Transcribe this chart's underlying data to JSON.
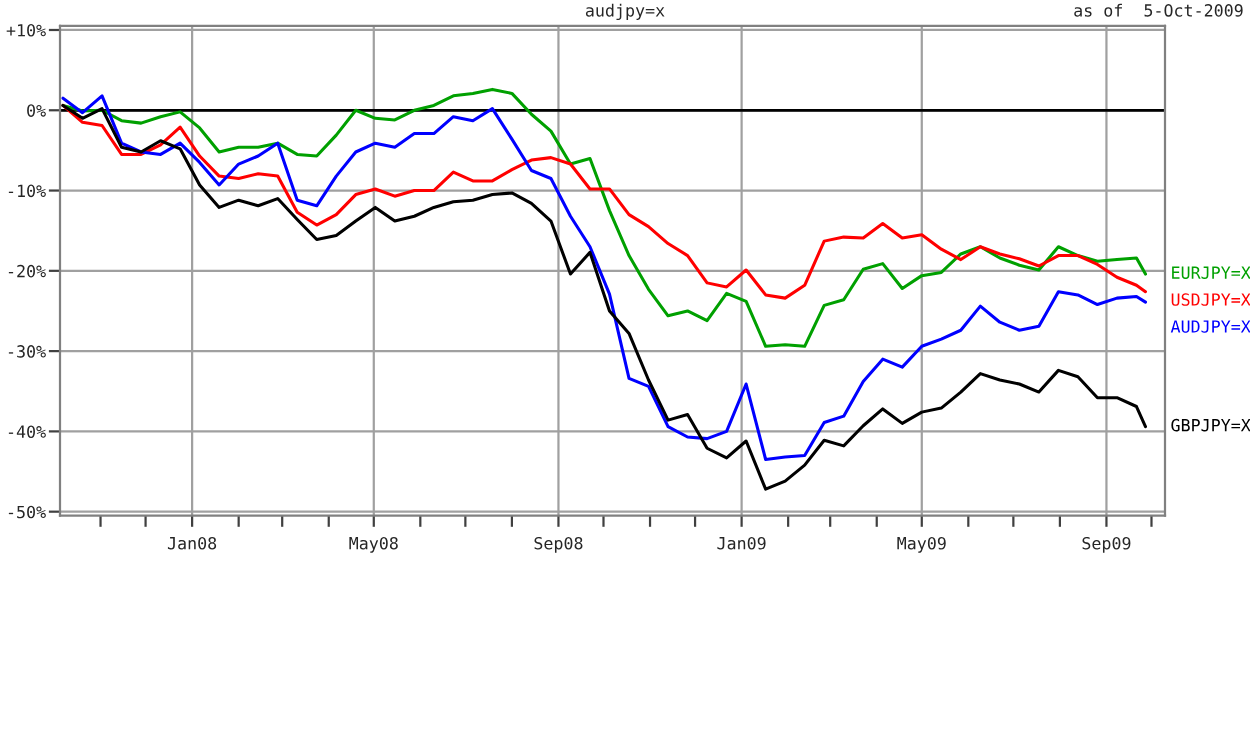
{
  "chart_data": {
    "type": "line",
    "title": "audjpy=x",
    "annotations": [
      "as of  5-Oct-2009"
    ],
    "x": [
      "2007-10-07",
      "2007-10-20",
      "2007-11-02",
      "2007-11-15",
      "2007-11-28",
      "2007-12-11",
      "2007-12-24",
      "2008-01-06",
      "2008-01-19",
      "2008-02-01",
      "2008-02-14",
      "2008-02-27",
      "2008-03-11",
      "2008-03-24",
      "2008-04-06",
      "2008-04-19",
      "2008-05-02",
      "2008-05-15",
      "2008-05-28",
      "2008-06-10",
      "2008-06-23",
      "2008-07-06",
      "2008-07-19",
      "2008-08-01",
      "2008-08-14",
      "2008-08-27",
      "2008-09-09",
      "2008-09-22",
      "2008-10-05",
      "2008-10-18",
      "2008-10-31",
      "2008-11-13",
      "2008-11-26",
      "2008-12-09",
      "2008-12-22",
      "2009-01-04",
      "2009-01-17",
      "2009-01-30",
      "2009-02-12",
      "2009-02-25",
      "2009-03-10",
      "2009-03-23",
      "2009-04-05",
      "2009-04-18",
      "2009-05-01",
      "2009-05-14",
      "2009-05-27",
      "2009-06-09",
      "2009-06-22",
      "2009-07-05",
      "2009-07-18",
      "2009-07-31",
      "2009-08-13",
      "2009-08-26",
      "2009-09-08",
      "2009-09-21",
      "2009-09-27"
    ],
    "series": [
      {
        "name": "EURJPY=X",
        "color": "#00a000",
        "values": [
          0.6,
          -0.1,
          0,
          -1.3,
          -1.6,
          -0.8,
          -0.2,
          -2.2,
          -5.2,
          -4.6,
          -4.6,
          -4.1,
          -5.5,
          -5.7,
          -3.1,
          0,
          -1.0,
          -1.2,
          0,
          0.6,
          1.8,
          2.1,
          2.6,
          2.1,
          -0.5,
          -2.6,
          -6.7,
          -6.0,
          -12.5,
          -18.1,
          -22.3,
          -25.6,
          -25.0,
          -26.2,
          -22.8,
          -23.8,
          -29.4,
          -29.2,
          -29.4,
          -24.3,
          -23.6,
          -19.8,
          -19.1,
          -22.2,
          -20.6,
          -20.2,
          -17.9,
          -17.0,
          -18.4,
          -19.3,
          -19.9,
          -17.0,
          -18.1,
          -18.8,
          -18.6,
          -18.4,
          -20.4
        ]
      },
      {
        "name": "USDJPY=X",
        "color": "#ff0000",
        "values": [
          0.6,
          -1.5,
          -1.9,
          -5.5,
          -5.5,
          -4.3,
          -2.1,
          -5.7,
          -8.2,
          -8.5,
          -7.9,
          -8.2,
          -12.7,
          -14.3,
          -13.0,
          -10.5,
          -9.8,
          -10.7,
          -10.0,
          -10.0,
          -7.7,
          -8.8,
          -8.8,
          -7.4,
          -6.2,
          -5.9,
          -6.7,
          -9.8,
          -9.8,
          -13.0,
          -14.5,
          -16.6,
          -18.1,
          -21.5,
          -22.0,
          -19.9,
          -23.0,
          -23.4,
          -21.8,
          -16.3,
          -15.8,
          -15.9,
          -14.1,
          -15.9,
          -15.5,
          -17.3,
          -18.6,
          -17.0,
          -17.9,
          -18.5,
          -19.4,
          -18.1,
          -18.1,
          -19.2,
          -20.8,
          -21.8,
          -22.6
        ]
      },
      {
        "name": "AUDJPY=X",
        "color": "#0000ff",
        "values": [
          1.5,
          -0.3,
          1.8,
          -4.1,
          -5.2,
          -5.5,
          -4.1,
          -6.5,
          -9.3,
          -6.7,
          -5.7,
          -4.1,
          -11.2,
          -11.9,
          -8.2,
          -5.2,
          -4.1,
          -4.6,
          -2.9,
          -2.9,
          -0.8,
          -1.3,
          0.2,
          -3.6,
          -7.5,
          -8.5,
          -13.2,
          -17.0,
          -22.9,
          -33.4,
          -34.4,
          -39.4,
          -40.7,
          -40.9,
          -40.0,
          -34.1,
          -43.5,
          -43.2,
          -43.0,
          -38.9,
          -38.1,
          -33.8,
          -31.0,
          -32.0,
          -29.4,
          -28.5,
          -27.4,
          -24.4,
          -26.4,
          -27.4,
          -26.9,
          -22.6,
          -23.0,
          -24.2,
          -23.4,
          -23.2,
          -23.9
        ]
      },
      {
        "name": "GBPJPY=X",
        "color": "#000000",
        "values": [
          0.6,
          -1.0,
          0.2,
          -4.6,
          -5.2,
          -3.8,
          -4.8,
          -9.3,
          -12.1,
          -11.2,
          -11.9,
          -11.0,
          -13.6,
          -16.1,
          -15.6,
          -13.8,
          -12.1,
          -13.8,
          -13.2,
          -12.1,
          -11.4,
          -11.2,
          -10.5,
          -10.3,
          -11.6,
          -13.8,
          -20.4,
          -17.7,
          -25.0,
          -27.8,
          -33.6,
          -38.6,
          -37.9,
          -42.1,
          -43.3,
          -41.2,
          -47.2,
          -46.2,
          -44.2,
          -41.1,
          -41.8,
          -39.3,
          -37.2,
          -39.0,
          -37.6,
          -37.1,
          -35.1,
          -32.8,
          -33.6,
          -34.1,
          -35.1,
          -32.4,
          -33.2,
          -35.8,
          -35.8,
          -36.9,
          -39.4
        ]
      }
    ],
    "xlim": [
      "2007-10-05",
      "2009-10-10"
    ],
    "xticks": [
      {
        "value": "2007-11-01",
        "label": null
      },
      {
        "value": "2007-12-01",
        "label": null
      },
      {
        "value": "2008-01-01",
        "label": "Jan08"
      },
      {
        "value": "2008-02-01",
        "label": null
      },
      {
        "value": "2008-03-01",
        "label": null
      },
      {
        "value": "2008-04-01",
        "label": null
      },
      {
        "value": "2008-05-01",
        "label": "May08"
      },
      {
        "value": "2008-06-01",
        "label": null
      },
      {
        "value": "2008-07-01",
        "label": null
      },
      {
        "value": "2008-08-01",
        "label": null
      },
      {
        "value": "2008-09-01",
        "label": "Sep08"
      },
      {
        "value": "2008-10-01",
        "label": null
      },
      {
        "value": "2008-11-01",
        "label": null
      },
      {
        "value": "2008-12-01",
        "label": null
      },
      {
        "value": "2009-01-01",
        "label": "Jan09"
      },
      {
        "value": "2009-02-01",
        "label": null
      },
      {
        "value": "2009-03-01",
        "label": null
      },
      {
        "value": "2009-04-01",
        "label": null
      },
      {
        "value": "2009-05-01",
        "label": "May09"
      },
      {
        "value": "2009-06-01",
        "label": null
      },
      {
        "value": "2009-07-01",
        "label": null
      },
      {
        "value": "2009-08-01",
        "label": null
      },
      {
        "value": "2009-09-01",
        "label": "Sep09"
      },
      {
        "value": "2009-10-01",
        "label": null
      }
    ],
    "ylim": [
      -50.5,
      10.5
    ],
    "yticks": [
      {
        "value": 10,
        "label": "+10%"
      },
      {
        "value": 0,
        "label": "0%"
      },
      {
        "value": -10,
        "label": "-10%"
      },
      {
        "value": -20,
        "label": "-20%"
      },
      {
        "value": -30,
        "label": "-30%"
      },
      {
        "value": -40,
        "label": "-40%"
      },
      {
        "value": -50,
        "label": "-50%"
      }
    ],
    "ref_lines": [
      {
        "axis": "y",
        "value": 0,
        "color": "#000000"
      }
    ],
    "grid": true,
    "legend": false,
    "marker": "none",
    "line_style": "solid"
  }
}
